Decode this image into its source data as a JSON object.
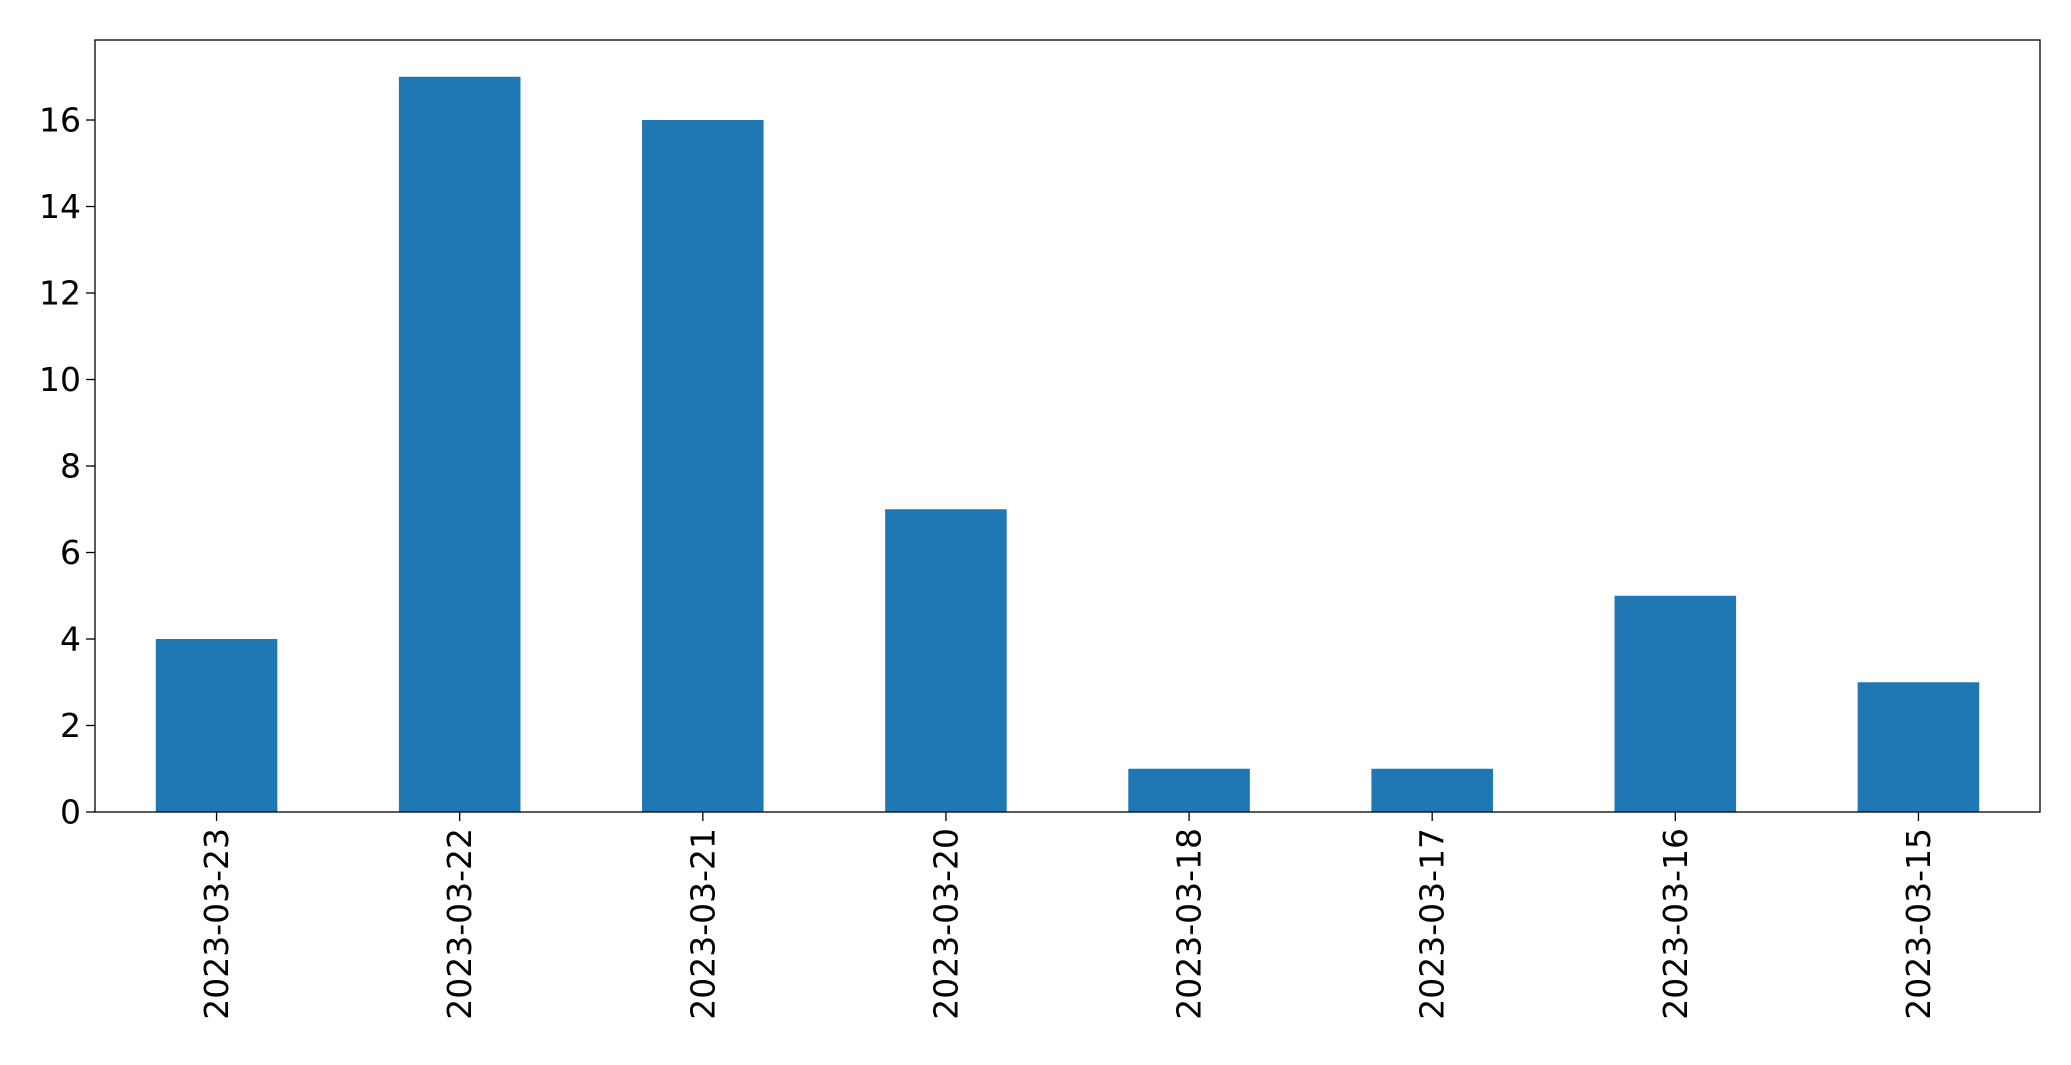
{
  "chart_data": {
    "type": "bar",
    "title": "",
    "xlabel": "",
    "ylabel": "",
    "categories": [
      "2023-03-23",
      "2023-03-22",
      "2023-03-21",
      "2023-03-20",
      "2023-03-18",
      "2023-03-17",
      "2023-03-16",
      "2023-03-15"
    ],
    "values": [
      4,
      17,
      16,
      7,
      1,
      1,
      5,
      3
    ],
    "ylim": [
      0,
      17.85
    ],
    "yticks": [
      0,
      2,
      4,
      6,
      8,
      10,
      12,
      14,
      16
    ],
    "grid": false,
    "legend": "none",
    "bar_color": "#1f77b4",
    "axis_color": "#000000"
  }
}
